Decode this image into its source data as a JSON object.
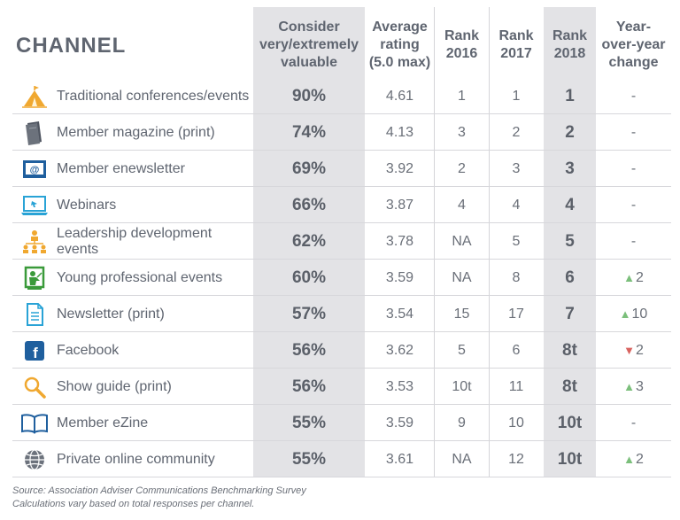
{
  "header": {
    "channel": "CHANNEL",
    "valuable": "Consider\nvery/extremely\nvaluable",
    "rating": "Average\nrating\n(5.0 max)",
    "rank2016": "Rank\n2016",
    "rank2017": "Rank\n2017",
    "rank2018": "Rank\n2018",
    "change": "Year-\nover-year\nchange"
  },
  "rows": [
    {
      "icon": "tent-icon",
      "name": "Traditional conferences/events",
      "pct": "90%",
      "rating": "4.61",
      "r2016": "1",
      "r2017": "1",
      "r2018": "1",
      "change": "-",
      "dir": ""
    },
    {
      "icon": "magazine-icon",
      "name": "Member magazine (print)",
      "pct": "74%",
      "rating": "4.13",
      "r2016": "3",
      "r2017": "2",
      "r2018": "2",
      "change": "-",
      "dir": ""
    },
    {
      "icon": "email-icon",
      "name": "Member enewsletter",
      "pct": "69%",
      "rating": "3.92",
      "r2016": "2",
      "r2017": "3",
      "r2018": "3",
      "change": "-",
      "dir": ""
    },
    {
      "icon": "laptop-icon",
      "name": "Webinars",
      "pct": "66%",
      "rating": "3.87",
      "r2016": "4",
      "r2017": "4",
      "r2018": "4",
      "change": "-",
      "dir": ""
    },
    {
      "icon": "org-chart-icon",
      "name": "Leadership development events",
      "pct": "62%",
      "rating": "3.78",
      "r2016": "NA",
      "r2017": "5",
      "r2018": "5",
      "change": "-",
      "dir": ""
    },
    {
      "icon": "presenter-icon",
      "name": "Young professional events",
      "pct": "60%",
      "rating": "3.59",
      "r2016": "NA",
      "r2017": "8",
      "r2018": "6",
      "change": "2",
      "dir": "up"
    },
    {
      "icon": "document-icon",
      "name": "Newsletter (print)",
      "pct": "57%",
      "rating": "3.54",
      "r2016": "15",
      "r2017": "17",
      "r2018": "7",
      "change": "10",
      "dir": "up"
    },
    {
      "icon": "facebook-icon",
      "name": "Facebook",
      "pct": "56%",
      "rating": "3.62",
      "r2016": "5",
      "r2017": "6",
      "r2018": "8t",
      "change": "2",
      "dir": "down"
    },
    {
      "icon": "magnifier-icon",
      "name": "Show guide (print)",
      "pct": "56%",
      "rating": "3.53",
      "r2016": "10t",
      "r2017": "11",
      "r2018": "8t",
      "change": "3",
      "dir": "up"
    },
    {
      "icon": "book-icon",
      "name": "Member eZine",
      "pct": "55%",
      "rating": "3.59",
      "r2016": "9",
      "r2017": "10",
      "r2018": "10t",
      "change": "-",
      "dir": ""
    },
    {
      "icon": "globe-icon",
      "name": "Private online community",
      "pct": "55%",
      "rating": "3.61",
      "r2016": "NA",
      "r2017": "12",
      "r2018": "10t",
      "change": "2",
      "dir": "up"
    }
  ],
  "footer": {
    "source": "Source: Association Adviser Communications Benchmarking Survey",
    "note": "Calculations vary based on total responses per channel."
  },
  "colors": {
    "shade": "#e3e3e6",
    "up": "#7bbf7b",
    "down": "#d9635f",
    "icon_orange": "#f0a830",
    "icon_blue": "#1f6fae",
    "icon_green": "#3a9a3a"
  }
}
